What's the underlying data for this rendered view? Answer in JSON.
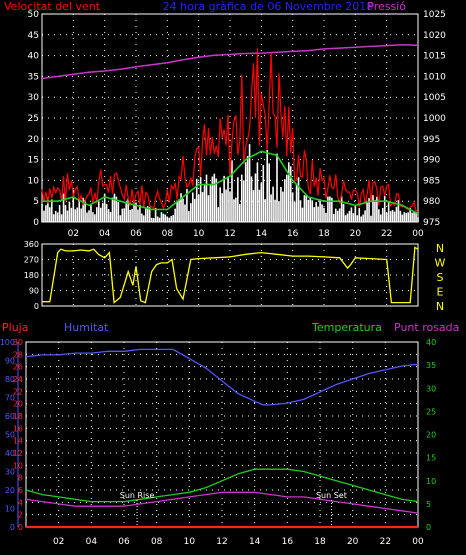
{
  "header": {
    "left_title": "Velocitat del vent",
    "center_title": "24 hora gràfica de 06 Novembre 2018",
    "right_title": "Pressió"
  },
  "colors": {
    "background": "#000000",
    "frame": "#ffffff",
    "grid": "#ffffff",
    "wind_gust": "#ff0000",
    "wind_avg_fill": "#ffffff",
    "wind_avg_line": "#22cc22",
    "pressure": "#cc33cc",
    "direction": "#ffff00",
    "rain": "#ff2222",
    "humidity": "#5555ff",
    "temperature": "#22cc22",
    "dewpoint": "#cc33cc",
    "title_left": "#ff0000",
    "title_center": "#2222ff",
    "title_right": "#cc33cc",
    "tick_label": "#ffffff",
    "axis_compass": "#ffff00"
  },
  "chart_data": [
    {
      "type": "line",
      "name": "wind-and-pressure",
      "x_ticks": [
        "02",
        "04",
        "06",
        "08",
        "10",
        "12",
        "14",
        "16",
        "18",
        "20",
        "22",
        "00"
      ],
      "x_tick_hours": [
        2,
        4,
        6,
        8,
        10,
        12,
        14,
        16,
        18,
        20,
        22,
        24
      ],
      "xlim": [
        0,
        24
      ],
      "y_left_ticks": [
        0,
        5,
        10,
        15,
        20,
        25,
        30,
        35,
        40,
        45,
        50
      ],
      "ylim_left": [
        0,
        50
      ],
      "y_right_ticks": [
        975,
        980,
        985,
        990,
        995,
        1000,
        1005,
        1010,
        1015,
        1020,
        1025
      ],
      "ylim_right": [
        975,
        1025
      ],
      "grid": true,
      "series": [
        {
          "name": "Pressió",
          "axis": "right",
          "x": [
            0,
            1,
            2,
            3,
            4,
            5,
            6,
            7,
            8,
            9,
            10,
            11,
            12,
            13,
            14,
            15,
            16,
            17,
            18,
            19,
            20,
            21,
            22,
            23,
            24
          ],
          "values": [
            1009.5,
            1010.0,
            1010.5,
            1011.0,
            1011.3,
            1011.7,
            1012.3,
            1012.8,
            1013.3,
            1014.0,
            1014.6,
            1015.1,
            1015.3,
            1015.5,
            1015.6,
            1015.8,
            1016.0,
            1016.2,
            1016.6,
            1016.8,
            1017.0,
            1017.2,
            1017.4,
            1017.6,
            1017.5
          ]
        },
        {
          "name": "wind-gust",
          "axis": "left",
          "x": [
            0,
            1,
            2,
            3,
            4,
            5,
            6,
            7,
            8,
            9,
            10,
            11,
            12,
            13,
            14,
            15,
            16,
            17,
            18,
            19,
            20,
            21,
            22,
            23,
            24
          ],
          "values": [
            9,
            8,
            10,
            7,
            11,
            9,
            8,
            6,
            7,
            15,
            20,
            18,
            22,
            30,
            36,
            32,
            20,
            12,
            11,
            9,
            8,
            8,
            9,
            7,
            3
          ]
        },
        {
          "name": "wind-average",
          "axis": "left",
          "x": [
            0,
            1,
            2,
            3,
            4,
            5,
            6,
            7,
            8,
            9,
            10,
            11,
            12,
            13,
            14,
            15,
            16,
            17,
            18,
            19,
            20,
            21,
            22,
            23,
            24
          ],
          "values": [
            5,
            5,
            6,
            4,
            6,
            5,
            4,
            3,
            3,
            6,
            9,
            9,
            11,
            15,
            17,
            16,
            10,
            6,
            5,
            5,
            4,
            5,
            5,
            4,
            2
          ]
        }
      ]
    },
    {
      "type": "line",
      "name": "wind-direction",
      "xlim": [
        0,
        24
      ],
      "y_ticks": [
        0,
        90,
        180,
        270,
        360
      ],
      "ylim": [
        0,
        360
      ],
      "right_labels": [
        "N",
        "W",
        "S",
        "E",
        "N"
      ],
      "series": [
        {
          "name": "direction",
          "x": [
            0,
            0.5,
            1,
            1.2,
            1.5,
            2,
            2.5,
            3,
            3.3,
            3.6,
            4,
            4.3,
            4.6,
            5,
            5.5,
            5.8,
            6,
            6.3,
            6.6,
            7,
            7.3,
            7.6,
            8,
            8.3,
            8.6,
            9,
            9.5,
            10,
            11,
            12,
            13,
            14,
            15,
            16,
            17,
            18,
            19,
            19.5,
            19.7,
            20,
            21,
            22,
            22.3,
            22.6,
            23,
            23.5,
            23.8,
            24
          ],
          "values": [
            25,
            25,
            310,
            330,
            320,
            320,
            325,
            320,
            330,
            300,
            280,
            310,
            20,
            50,
            200,
            120,
            230,
            30,
            20,
            200,
            240,
            250,
            250,
            270,
            100,
            40,
            270,
            275,
            280,
            285,
            300,
            310,
            300,
            290,
            290,
            285,
            280,
            220,
            240,
            280,
            275,
            270,
            20,
            20,
            20,
            20,
            340,
            330
          ]
        }
      ]
    },
    {
      "type": "line",
      "name": "rain-humidity-temperature",
      "y_labels": {
        "rain": "Pluja",
        "humidity": "Humitat",
        "temperature": "Temperatura",
        "dewpoint": "Punt rosada"
      },
      "xlim": [
        0,
        24
      ],
      "y_humidity_ticks": [
        0,
        10,
        20,
        30,
        40,
        50,
        60,
        70,
        80,
        90,
        100
      ],
      "ylim_humidity": [
        0,
        100
      ],
      "y_rain_ticks": [
        0,
        2,
        4,
        6,
        8,
        10,
        12,
        14,
        16,
        18,
        20,
        22,
        24,
        26,
        28,
        30
      ],
      "ylim_rain": [
        0,
        30
      ],
      "y_temp_ticks": [
        0,
        5,
        10,
        15,
        20,
        25,
        30,
        35,
        40
      ],
      "ylim_temp": [
        0,
        40
      ],
      "annotations": [
        {
          "text": "Sun Rise",
          "x": 6.8
        },
        {
          "text": "Sun Set",
          "x": 18.7
        }
      ],
      "series": [
        {
          "name": "Humitat",
          "x": [
            0,
            1,
            2,
            3,
            4,
            5,
            6,
            7,
            8,
            9,
            10,
            11,
            12,
            13,
            14,
            14.5,
            15,
            16,
            17,
            18,
            19,
            20,
            21,
            22,
            23,
            24
          ],
          "values": [
            92,
            93,
            93,
            94,
            94,
            95,
            95,
            96,
            96,
            96,
            91,
            86,
            79,
            72,
            68,
            66,
            66,
            67,
            69,
            73,
            77,
            80,
            83,
            85,
            87,
            88
          ]
        },
        {
          "name": "Temperatura",
          "x": [
            0,
            1,
            2,
            3,
            4,
            5,
            6,
            7,
            8,
            9,
            10,
            11,
            12,
            13,
            14,
            15,
            16,
            17,
            18,
            19,
            20,
            21,
            22,
            23,
            24
          ],
          "values": [
            8,
            7,
            6.5,
            6,
            5.5,
            5.5,
            5.5,
            6,
            6.5,
            7,
            7.5,
            8.5,
            10,
            11.5,
            12.5,
            12.5,
            12.5,
            12,
            11,
            10,
            9,
            8,
            7,
            6,
            5.5
          ]
        },
        {
          "name": "Punt rosada",
          "x": [
            0,
            1,
            2,
            3,
            4,
            5,
            6,
            7,
            8,
            9,
            10,
            11,
            12,
            13,
            14,
            15,
            16,
            17,
            18,
            19,
            20,
            21,
            22,
            23,
            24
          ],
          "values": [
            6,
            5.5,
            5,
            4.5,
            4.5,
            4.5,
            4.5,
            5,
            5.5,
            6,
            6.5,
            7,
            7.5,
            7.5,
            7.5,
            7,
            6.5,
            6.5,
            6,
            5.5,
            5,
            4.5,
            4,
            3.5,
            3
          ]
        },
        {
          "name": "Pluja",
          "x": [
            0,
            24
          ],
          "values": [
            0,
            0
          ]
        }
      ]
    }
  ]
}
